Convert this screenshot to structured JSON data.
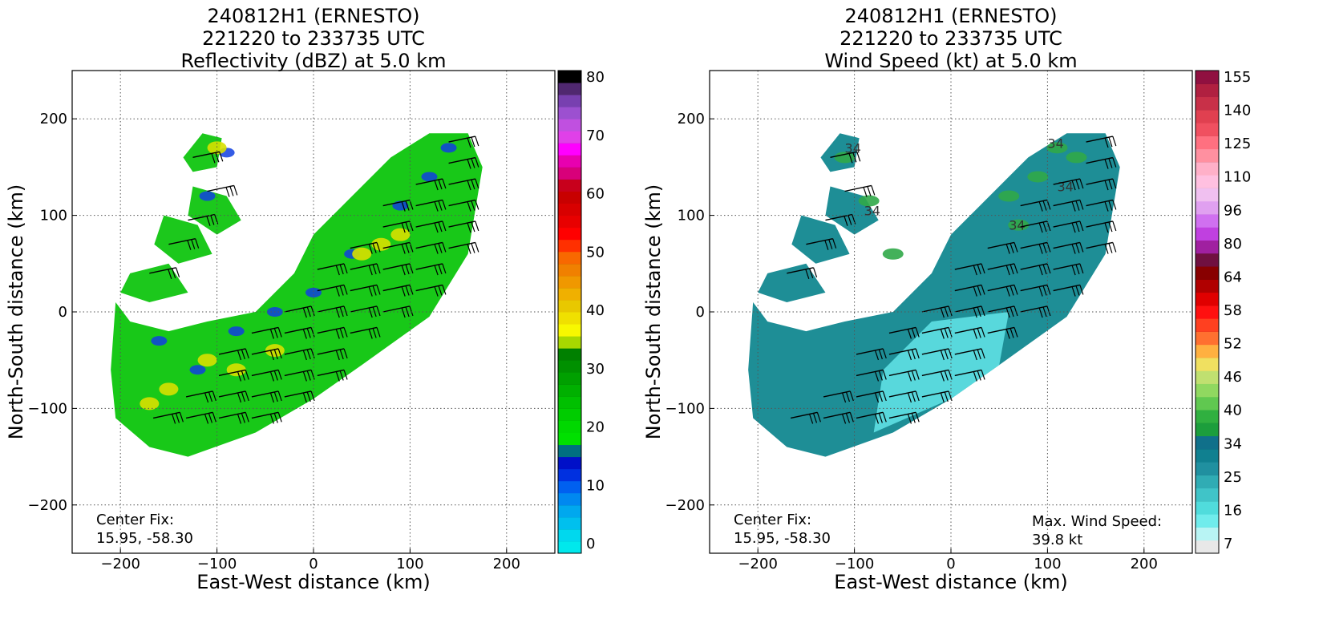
{
  "panels": [
    {
      "title_lines": [
        "240812H1 (ERNESTO)",
        "221220 to 233735 UTC",
        "Reflectivity (dBZ) at 5.0 km"
      ],
      "xlabel": "East-West distance (km)",
      "ylabel": "North-South distance (km)",
      "xticks": [
        "−200",
        "−100",
        "0",
        "100",
        "200"
      ],
      "yticks": [
        "200",
        "100",
        "0",
        "−100",
        "−200"
      ],
      "annotation_left": [
        "Center Fix:",
        "15.95, -58.30"
      ],
      "annotation_right": [],
      "colorbar_labels": [
        "80",
        "70",
        "60",
        "50",
        "40",
        "30",
        "20",
        "10",
        "0"
      ],
      "colorbar_colors": [
        "#00e8ec",
        "#00d8ee",
        "#00c0ee",
        "#00a8ee",
        "#0088f0",
        "#0060f0",
        "#0030e0",
        "#0010c8",
        "#006f80",
        "#00e000",
        "#00d800",
        "#00cc00",
        "#00c000",
        "#00b000",
        "#00a000",
        "#009000",
        "#008000",
        "#a8d800",
        "#f8f800",
        "#f0e000",
        "#e8c800",
        "#f0b000",
        "#f09800",
        "#f08000",
        "#f86800",
        "#ff3000",
        "#ff0000",
        "#e80000",
        "#d80000",
        "#c80000",
        "#c8001c",
        "#d8007a",
        "#e800b0",
        "#ff00ff",
        "#e040e8",
        "#c050e0",
        "#9c50d0",
        "#7840b0",
        "#502870",
        "#000000"
      ]
    },
    {
      "title_lines": [
        "240812H1 (ERNESTO)",
        "221220 to 233735 UTC",
        "Wind Speed (kt) at 5.0 km"
      ],
      "xlabel": "East-West distance (km)",
      "ylabel": "North-South distance (km)",
      "xticks": [
        "−200",
        "−100",
        "0",
        "100",
        "200"
      ],
      "yticks": [
        "200",
        "100",
        "0",
        "−100",
        "−200"
      ],
      "annotation_left": [
        "Center Fix:",
        "15.95, -58.30"
      ],
      "annotation_right": [
        "Max. Wind Speed:",
        "39.8 kt"
      ],
      "colorbar_labels": [
        "155",
        "140",
        "125",
        "110",
        "96",
        "80",
        "64",
        "58",
        "52",
        "46",
        "40",
        "34",
        "25",
        "16",
        "7"
      ],
      "colorbar_colors": [
        "#e8e8e8",
        "#b8f4f4",
        "#70ecec",
        "#50dcdc",
        "#40c4c8",
        "#30acb4",
        "#2090a0",
        "#108090",
        "#10708a",
        "#1c9e3c",
        "#30b040",
        "#60c850",
        "#90d860",
        "#c0e070",
        "#f0e060",
        "#ffb040",
        "#ff7030",
        "#ff4020",
        "#ff1010",
        "#e00000",
        "#b00000",
        "#880000",
        "#701040",
        "#a020a0",
        "#c040e0",
        "#d070f0",
        "#e0a0f0",
        "#f0c0f0",
        "#ffc0e0",
        "#ffb0c8",
        "#ff90a0",
        "#ff7080",
        "#f05060",
        "#e04050",
        "#c83048",
        "#b02040",
        "#901040"
      ]
    }
  ],
  "chart_data": [
    {
      "type": "heatmap",
      "title": "240812H1 (ERNESTO) 221220 to 233735 UTC Reflectivity (dBZ) at 5.0 km",
      "xlabel": "East-West distance (km)",
      "ylabel": "North-South distance (km)",
      "xlim": [
        -250,
        250
      ],
      "ylim": [
        -250,
        250
      ],
      "grid": true,
      "colorbar": {
        "label": "dBZ",
        "min": 0,
        "max": 80,
        "ticks": [
          0,
          10,
          20,
          30,
          40,
          50,
          60,
          70,
          80
        ]
      },
      "overlay": "wind barbs",
      "annotations": [
        "Center Fix: 15.95, -58.30"
      ]
    },
    {
      "type": "heatmap",
      "title": "240812H1 (ERNESTO) 221220 to 233735 UTC Wind Speed (kt) at 5.0 km",
      "xlabel": "East-West distance (km)",
      "ylabel": "North-South distance (km)",
      "xlim": [
        -250,
        250
      ],
      "ylim": [
        -250,
        250
      ],
      "grid": true,
      "colorbar": {
        "label": "kt",
        "ticks": [
          7,
          16,
          25,
          34,
          40,
          46,
          52,
          58,
          64,
          80,
          96,
          110,
          125,
          140,
          155
        ]
      },
      "overlay": "wind barbs, 34 kt contour",
      "contour_labels": [
        "34"
      ],
      "max_wind_speed_kt": 39.8,
      "annotations": [
        "Center Fix: 15.95, -58.30",
        "Max. Wind Speed: 39.8 kt"
      ]
    }
  ]
}
